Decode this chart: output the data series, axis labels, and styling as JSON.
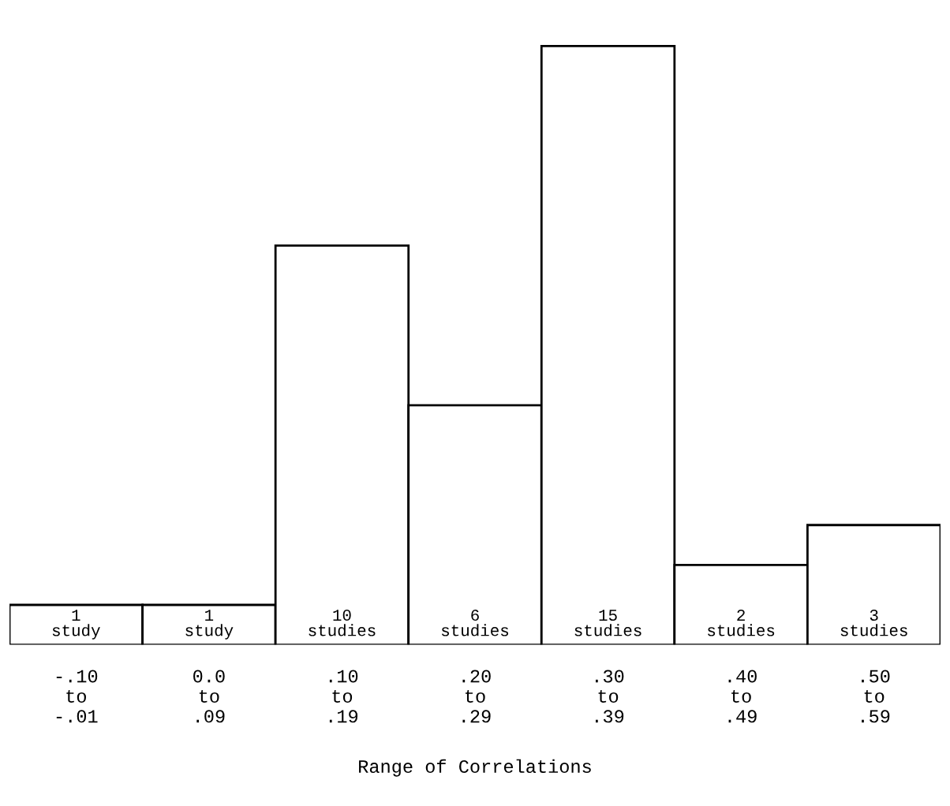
{
  "chart_data": {
    "type": "bar",
    "categories": [
      "-.10\nto\n-.01",
      "0.0\nto\n.09",
      ".10\nto\n.19",
      ".20\nto\n.29",
      ".30\nto\n.39",
      ".40\nto\n.49",
      ".50\nto\n.59"
    ],
    "values": [
      1,
      1,
      10,
      6,
      15,
      2,
      3
    ],
    "value_labels": [
      "1\nstudy",
      "1\nstudy",
      "10\nstudies",
      "6\nstudies",
      "15\nstudies",
      "2\nstudies",
      "3\nstudies"
    ],
    "color": "#ffffff",
    "xlabel": "Range of Correlations",
    "tick_labels": "x",
    "grid": false,
    "legend": false
  }
}
